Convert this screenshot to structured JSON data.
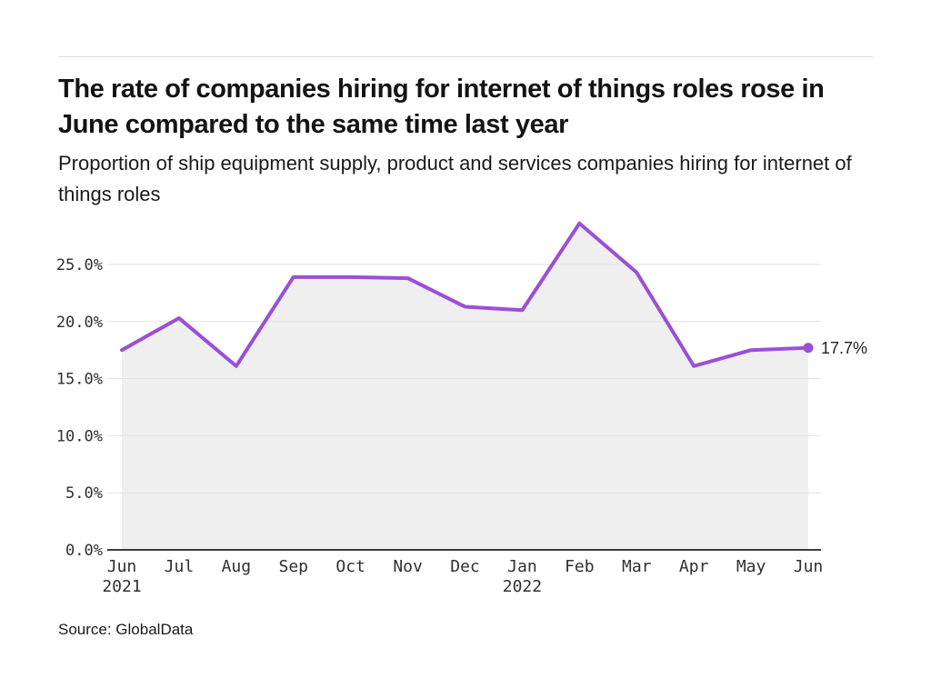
{
  "chart_data": {
    "type": "line",
    "title": "The rate of companies hiring for internet of things roles rose in June compared to the same time last year",
    "subtitle": "Proportion of ship equipment supply, product and services companies hiring for internet of things roles",
    "source": "Source: GlobalData",
    "categories": [
      "Jun",
      "Jul",
      "Aug",
      "Sep",
      "Oct",
      "Nov",
      "Dec",
      "Jan",
      "Feb",
      "Mar",
      "Apr",
      "May",
      "Jun"
    ],
    "year_labels": [
      {
        "index": 0,
        "label": "2021"
      },
      {
        "index": 7,
        "label": "2022"
      }
    ],
    "series": [
      {
        "name": "Proportion of companies hiring for internet of things roles",
        "values": [
          17.5,
          20.3,
          16.1,
          23.9,
          23.9,
          23.8,
          21.3,
          21.0,
          28.6,
          24.3,
          16.1,
          17.5,
          17.7
        ]
      }
    ],
    "end_label": "17.7%",
    "yticks": [
      0,
      5,
      10,
      15,
      20,
      25
    ],
    "ytick_labels": [
      "0.0%",
      "5.0%",
      "10.0%",
      "15.0%",
      "20.0%",
      "25.0%"
    ],
    "ylim": [
      0,
      30
    ],
    "grid": true,
    "legend": false,
    "area_filled": true,
    "colors": {
      "line": "#9B4FD6",
      "area_fill": "#EFEFEF",
      "gridline": "#E2E2E2",
      "axis": "#3D3D3D",
      "tick_text": "#303030",
      "annotation_text": "#222222",
      "title_text": "#141414",
      "divider": "#DCDCDC"
    }
  }
}
